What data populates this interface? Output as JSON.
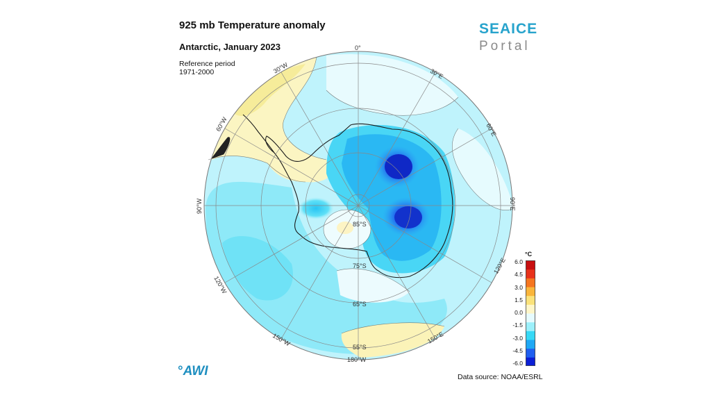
{
  "header": {
    "title": "925 mb Temperature anomaly",
    "subtitle": "Antarctic, January 2023",
    "reference_line1": "Reference period",
    "reference_line2": "1971-2000"
  },
  "brand": {
    "line1": "SEAICE",
    "line2": "Portal",
    "color_primary": "#27a3cc",
    "color_secondary": "#8a8a8a"
  },
  "logo": {
    "mark": "°",
    "text": "AWI",
    "color": "#1f8fc0"
  },
  "footer": {
    "source": "Data source: NOAA/ESRL"
  },
  "map": {
    "projection": "south-polar-stereographic",
    "longitude_labels": [
      "0°",
      "30°E",
      "60°E",
      "90°E",
      "120°E",
      "150°E",
      "180°W",
      "150°W",
      "120°W",
      "90°W",
      "60°W",
      "30°W"
    ],
    "latitude_labels": [
      "55°S",
      "65°S",
      "75°S",
      "85°S"
    ],
    "colors": {
      "land_outline": "#222222",
      "grid": "#888888",
      "deep_blue": "#1a3fd6",
      "blue": "#2f7cf0",
      "cyan": "#39dcf5",
      "light_cyan": "#aaf0fb",
      "pale_cyan": "#d6f8fd",
      "pale_yellow": "#fdf6c4",
      "yellow": "#f8f0a0"
    }
  },
  "colorbar": {
    "unit": "°C",
    "ticks": [
      "6.0",
      "4.5",
      "3.0",
      "1.5",
      "0.0",
      "-1.5",
      "-3.0",
      "-4.5",
      "-6.0"
    ],
    "range": [
      -6.0,
      6.0
    ],
    "colors_bottom_to_top": [
      "#0b1fd6",
      "#1f5ff0",
      "#1fa8f5",
      "#36d9f6",
      "#9cf0fb",
      "#e6fbff",
      "#fff6c8",
      "#fbe27a",
      "#f9b53b",
      "#f5751f",
      "#e8321a",
      "#c80f10"
    ]
  }
}
